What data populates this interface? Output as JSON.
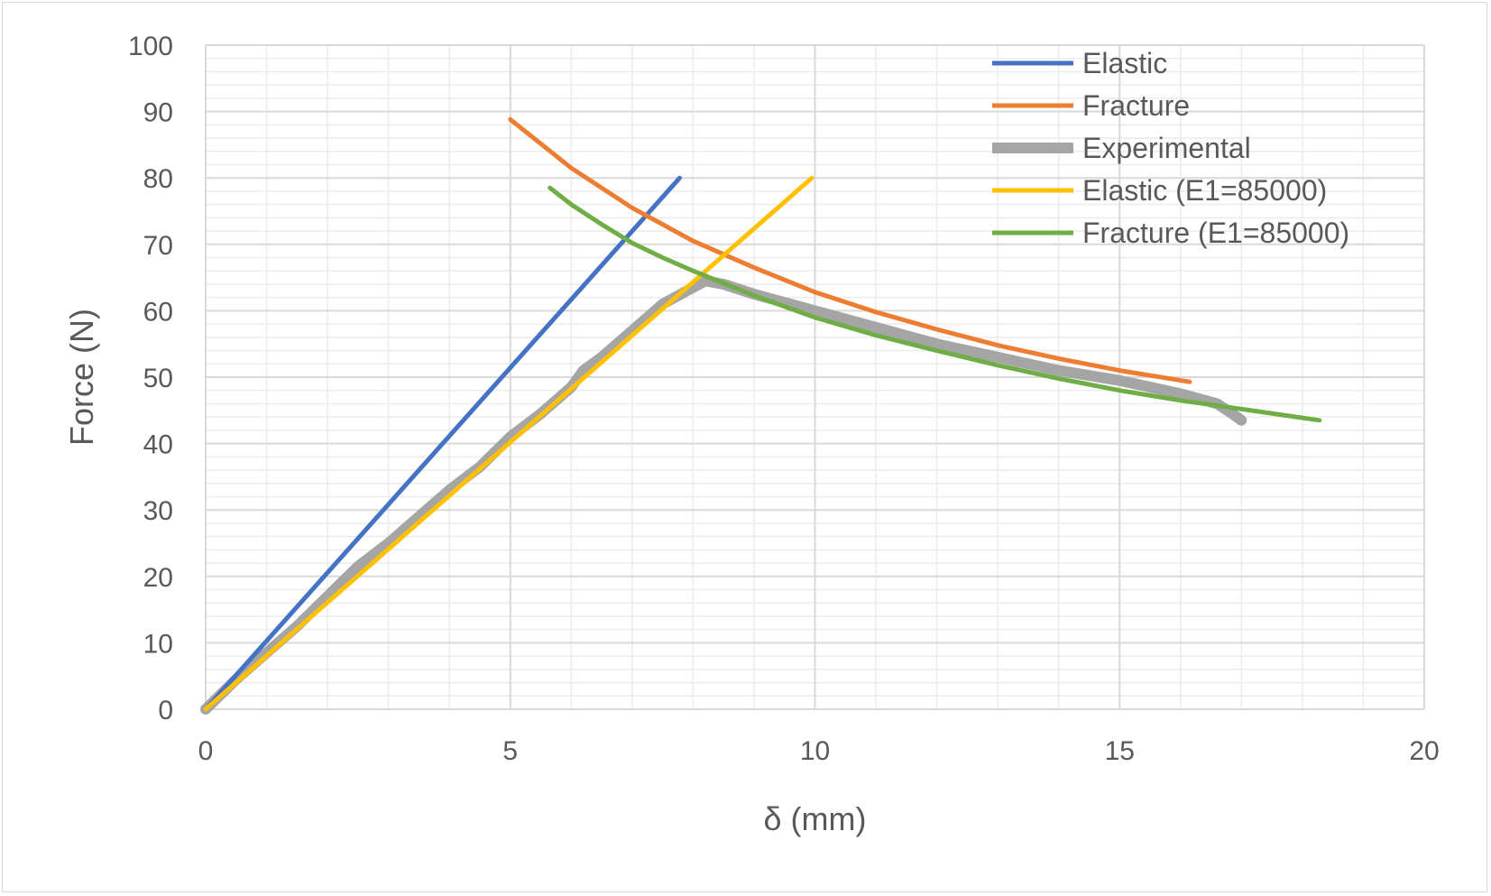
{
  "chart_data": {
    "type": "line",
    "xlabel": "δ (mm)",
    "ylabel": "Force (N)",
    "xlim": [
      0,
      20
    ],
    "ylim": [
      0,
      100
    ],
    "x_major_step": 5,
    "x_minor_step": 1,
    "y_major_step": 10,
    "y_minor_step": 2,
    "x_ticks": [
      "0",
      "5",
      "10",
      "15",
      "20"
    ],
    "y_ticks": [
      "0",
      "10",
      "20",
      "30",
      "40",
      "50",
      "60",
      "70",
      "80",
      "90",
      "100"
    ],
    "grid": true,
    "legend_position": "top-right",
    "series": [
      {
        "name": "Elastic",
        "color": "#4472c4",
        "width": 5,
        "points": [
          [
            0,
            0
          ],
          [
            7.78,
            80.0
          ]
        ]
      },
      {
        "name": "Fracture",
        "color": "#ed7d31",
        "width": 5,
        "points": [
          [
            5.0,
            88.8
          ],
          [
            6.0,
            81.5
          ],
          [
            7.0,
            75.5
          ],
          [
            8.0,
            70.5
          ],
          [
            9.0,
            66.5
          ],
          [
            10.0,
            62.8
          ],
          [
            11.0,
            59.8
          ],
          [
            12.0,
            57.2
          ],
          [
            13.0,
            54.8
          ],
          [
            14.0,
            52.8
          ],
          [
            15.0,
            51.0
          ],
          [
            16.15,
            49.3
          ]
        ]
      },
      {
        "name": "Experimental",
        "color": "#a5a5a5",
        "width": 12,
        "points": [
          [
            0,
            0
          ],
          [
            0.5,
            4.5
          ],
          [
            1.0,
            8.5
          ],
          [
            1.5,
            12.5
          ],
          [
            2.0,
            17.0
          ],
          [
            2.5,
            21.5
          ],
          [
            3.0,
            25.0
          ],
          [
            3.5,
            29.0
          ],
          [
            4.0,
            33.0
          ],
          [
            4.5,
            36.5
          ],
          [
            5.0,
            41.0
          ],
          [
            5.5,
            44.5
          ],
          [
            6.0,
            48.5
          ],
          [
            6.2,
            51.0
          ],
          [
            6.5,
            53.0
          ],
          [
            7.0,
            57.0
          ],
          [
            7.5,
            61.0
          ],
          [
            8.0,
            63.5
          ],
          [
            8.2,
            64.5
          ],
          [
            8.5,
            64.0
          ],
          [
            9.0,
            62.5
          ],
          [
            10.0,
            60.0
          ],
          [
            11.0,
            57.5
          ],
          [
            12.0,
            55.0
          ],
          [
            13.0,
            53.0
          ],
          [
            14.0,
            51.0
          ],
          [
            15.0,
            49.5
          ],
          [
            16.0,
            47.5
          ],
          [
            16.6,
            46.0
          ],
          [
            16.85,
            44.5
          ],
          [
            17.0,
            43.5
          ]
        ]
      },
      {
        "name": "Elastic (E1=85000)",
        "color": "#ffc000",
        "width": 5,
        "points": [
          [
            0,
            0
          ],
          [
            9.95,
            80.0
          ]
        ]
      },
      {
        "name": "Fracture (E1=85000)",
        "color": "#70ad47",
        "width": 5,
        "points": [
          [
            5.65,
            78.5
          ],
          [
            6.0,
            76.0
          ],
          [
            6.5,
            73.0
          ],
          [
            7.0,
            70.2
          ],
          [
            7.5,
            68.0
          ],
          [
            8.0,
            66.0
          ],
          [
            9.0,
            62.3
          ],
          [
            10.0,
            59.0
          ],
          [
            11.0,
            56.3
          ],
          [
            12.0,
            54.0
          ],
          [
            13.0,
            51.8
          ],
          [
            14.0,
            49.8
          ],
          [
            15.0,
            48.0
          ],
          [
            16.0,
            46.5
          ],
          [
            17.0,
            45.2
          ],
          [
            18.28,
            43.5
          ]
        ]
      }
    ]
  }
}
